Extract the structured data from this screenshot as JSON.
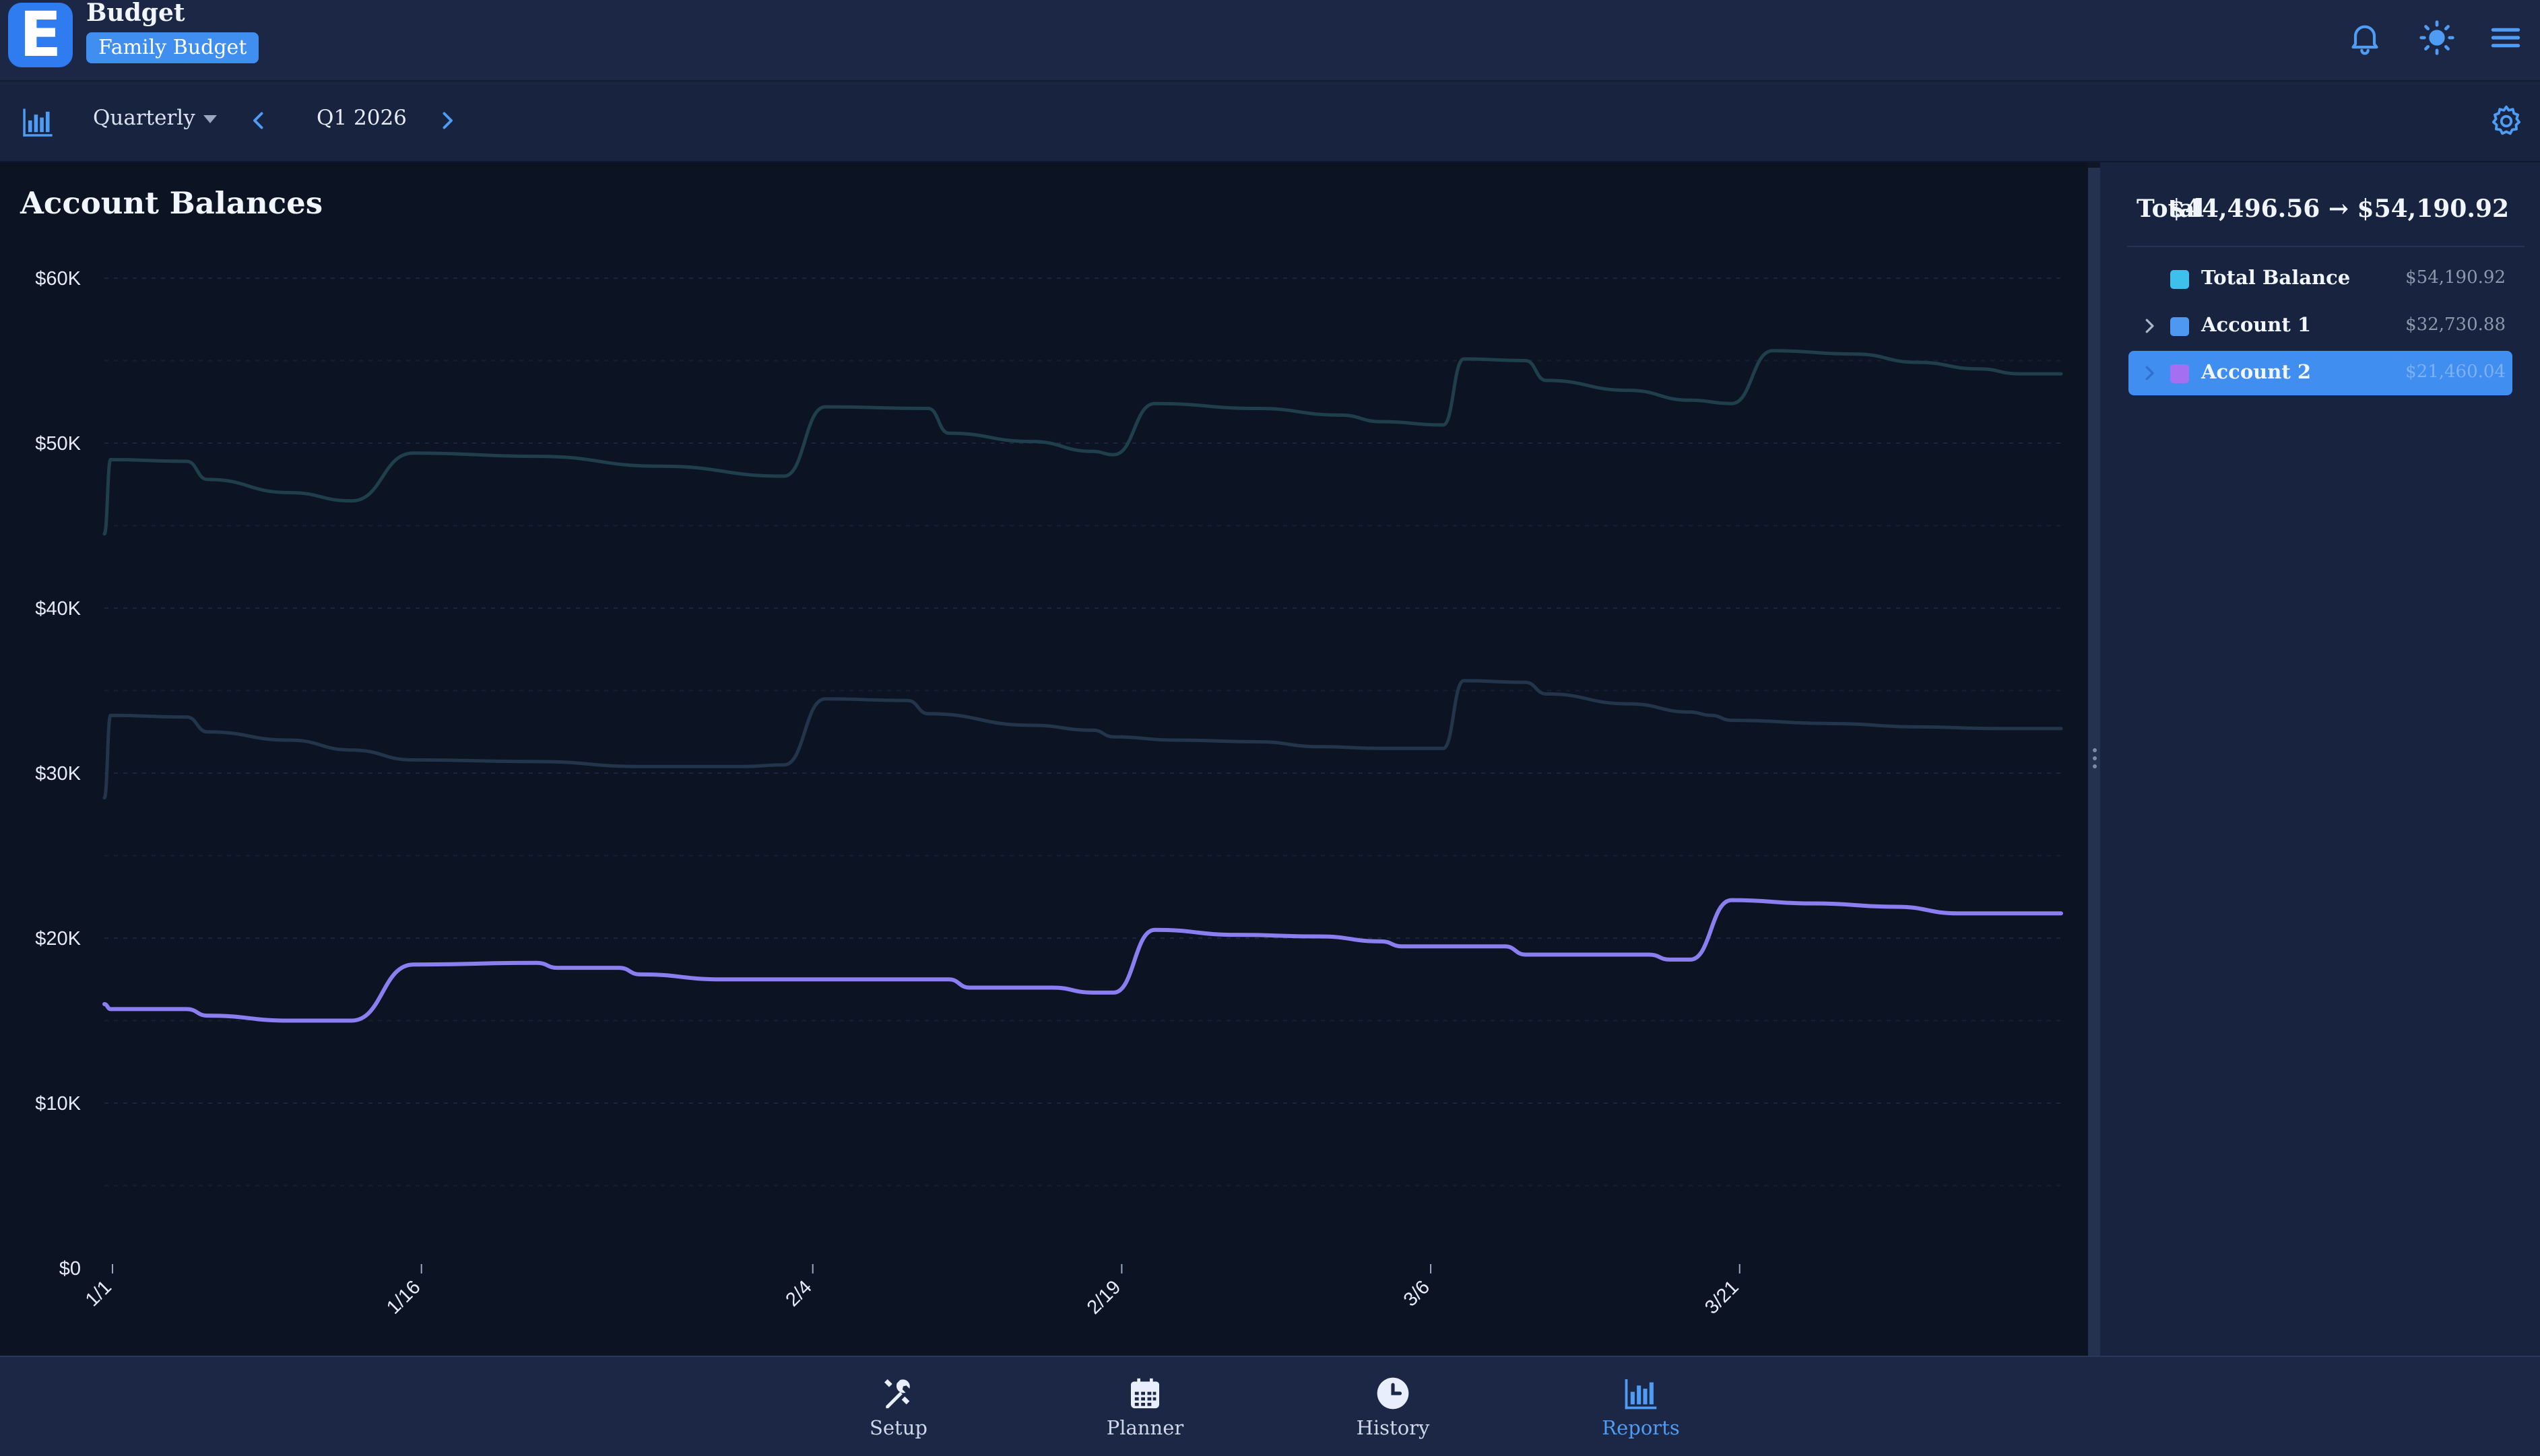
{
  "app": {
    "logo_letter": "E",
    "name": "Budget",
    "badge": "Family Budget",
    "icons": [
      "bell-icon",
      "sun-icon",
      "menu-icon"
    ]
  },
  "toolbar": {
    "chart_icon": "bar-chart-icon",
    "period_type": "Quarterly",
    "period": "Q1 2026",
    "prev_icon": "chevron-left-icon",
    "next_icon": "chevron-right-icon",
    "settings_icon": "gear-icon"
  },
  "chart": {
    "title": "Account Balances"
  },
  "panel": {
    "total_label": "Total",
    "total_range": "$44,496.56 → $54,190.92",
    "rows": [
      {
        "name": "Total Balance",
        "value": "$54,190.92",
        "color": "#3fc0ec",
        "expandable": false,
        "selected": false
      },
      {
        "name": "Account 1",
        "value": "$32,730.88",
        "color": "#4e98f2",
        "expandable": true,
        "selected": false
      },
      {
        "name": "Account 2",
        "value": "$21,460.04",
        "color": "#a46ff0",
        "expandable": true,
        "selected": true
      }
    ]
  },
  "nav": [
    {
      "label": "Setup",
      "icon": "tools-icon",
      "active": false
    },
    {
      "label": "Planner",
      "icon": "calendar-icon",
      "active": false
    },
    {
      "label": "History",
      "icon": "clock-icon",
      "active": false
    },
    {
      "label": "Reports",
      "icon": "bar-chart-icon",
      "active": true
    }
  ],
  "colors": {
    "accent": "#3f8ef0",
    "total_line": "#1f3f4a",
    "account1_line": "#23354a",
    "account2_line": "#8a7ff0"
  },
  "chart_data": {
    "type": "line",
    "title": "Account Balances",
    "xlabel": "",
    "ylabel": "",
    "ylim": [
      0,
      60000
    ],
    "grid": true,
    "y_ticks": [
      "$0",
      "$10K",
      "$20K",
      "$30K",
      "$40K",
      "$50K",
      "$60K"
    ],
    "x_ticks": [
      "1/1",
      "1/16",
      "2/4",
      "2/19",
      "3/6",
      "3/21"
    ],
    "series": [
      {
        "name": "Total Balance",
        "points": [
          [
            0,
            44500
          ],
          [
            0.3,
            49000
          ],
          [
            4,
            48900
          ],
          [
            5,
            47800
          ],
          [
            9,
            47000
          ],
          [
            12,
            46500
          ],
          [
            15,
            49400
          ],
          [
            21,
            49200
          ],
          [
            27,
            48600
          ],
          [
            33,
            48000
          ],
          [
            35,
            52200
          ],
          [
            40,
            52100
          ],
          [
            41,
            50600
          ],
          [
            45,
            50100
          ],
          [
            48,
            49500
          ],
          [
            49,
            49300
          ],
          [
            51,
            52400
          ],
          [
            56,
            52100
          ],
          [
            60,
            51700
          ],
          [
            62,
            51300
          ],
          [
            65,
            51100
          ],
          [
            66,
            55100
          ],
          [
            69,
            55000
          ],
          [
            70,
            53800
          ],
          [
            74,
            53200
          ],
          [
            77,
            52600
          ],
          [
            79,
            52400
          ],
          [
            81,
            55600
          ],
          [
            85,
            55400
          ],
          [
            88,
            54900
          ],
          [
            91,
            54500
          ],
          [
            93,
            54200
          ],
          [
            95,
            54200
          ]
        ]
      },
      {
        "name": "Account 1",
        "points": [
          [
            0,
            28500
          ],
          [
            0.3,
            33500
          ],
          [
            4,
            33400
          ],
          [
            5,
            32500
          ],
          [
            9,
            32000
          ],
          [
            12,
            31400
          ],
          [
            15,
            30800
          ],
          [
            21,
            30700
          ],
          [
            26,
            30400
          ],
          [
            31,
            30400
          ],
          [
            33,
            30500
          ],
          [
            35,
            34500
          ],
          [
            39,
            34400
          ],
          [
            40,
            33600
          ],
          [
            45,
            32900
          ],
          [
            48,
            32600
          ],
          [
            49,
            32200
          ],
          [
            52,
            32000
          ],
          [
            56,
            31900
          ],
          [
            59,
            31600
          ],
          [
            62,
            31500
          ],
          [
            65,
            31500
          ],
          [
            66,
            35600
          ],
          [
            69,
            35500
          ],
          [
            70,
            34800
          ],
          [
            74,
            34200
          ],
          [
            77,
            33700
          ],
          [
            78,
            33500
          ],
          [
            79,
            33200
          ],
          [
            84,
            33000
          ],
          [
            88,
            32800
          ],
          [
            92,
            32700
          ],
          [
            95,
            32700
          ]
        ]
      },
      {
        "name": "Account 2",
        "points": [
          [
            0,
            16000
          ],
          [
            0.3,
            15700
          ],
          [
            4,
            15700
          ],
          [
            5,
            15300
          ],
          [
            9,
            15000
          ],
          [
            12,
            15000
          ],
          [
            15,
            18400
          ],
          [
            21,
            18500
          ],
          [
            22,
            18200
          ],
          [
            25,
            18200
          ],
          [
            26,
            17800
          ],
          [
            30,
            17500
          ],
          [
            37,
            17500
          ],
          [
            41,
            17500
          ],
          [
            42,
            17000
          ],
          [
            46,
            17000
          ],
          [
            48,
            16700
          ],
          [
            49,
            16700
          ],
          [
            51,
            20500
          ],
          [
            55,
            20200
          ],
          [
            59,
            20100
          ],
          [
            62,
            19800
          ],
          [
            63,
            19500
          ],
          [
            66,
            19500
          ],
          [
            68,
            19500
          ],
          [
            69,
            19000
          ],
          [
            72,
            19000
          ],
          [
            75,
            19000
          ],
          [
            76,
            18700
          ],
          [
            77,
            18700
          ],
          [
            79,
            22300
          ],
          [
            83,
            22100
          ],
          [
            87,
            21900
          ],
          [
            90,
            21500
          ],
          [
            92,
            21500
          ],
          [
            95,
            21500
          ]
        ]
      }
    ]
  }
}
